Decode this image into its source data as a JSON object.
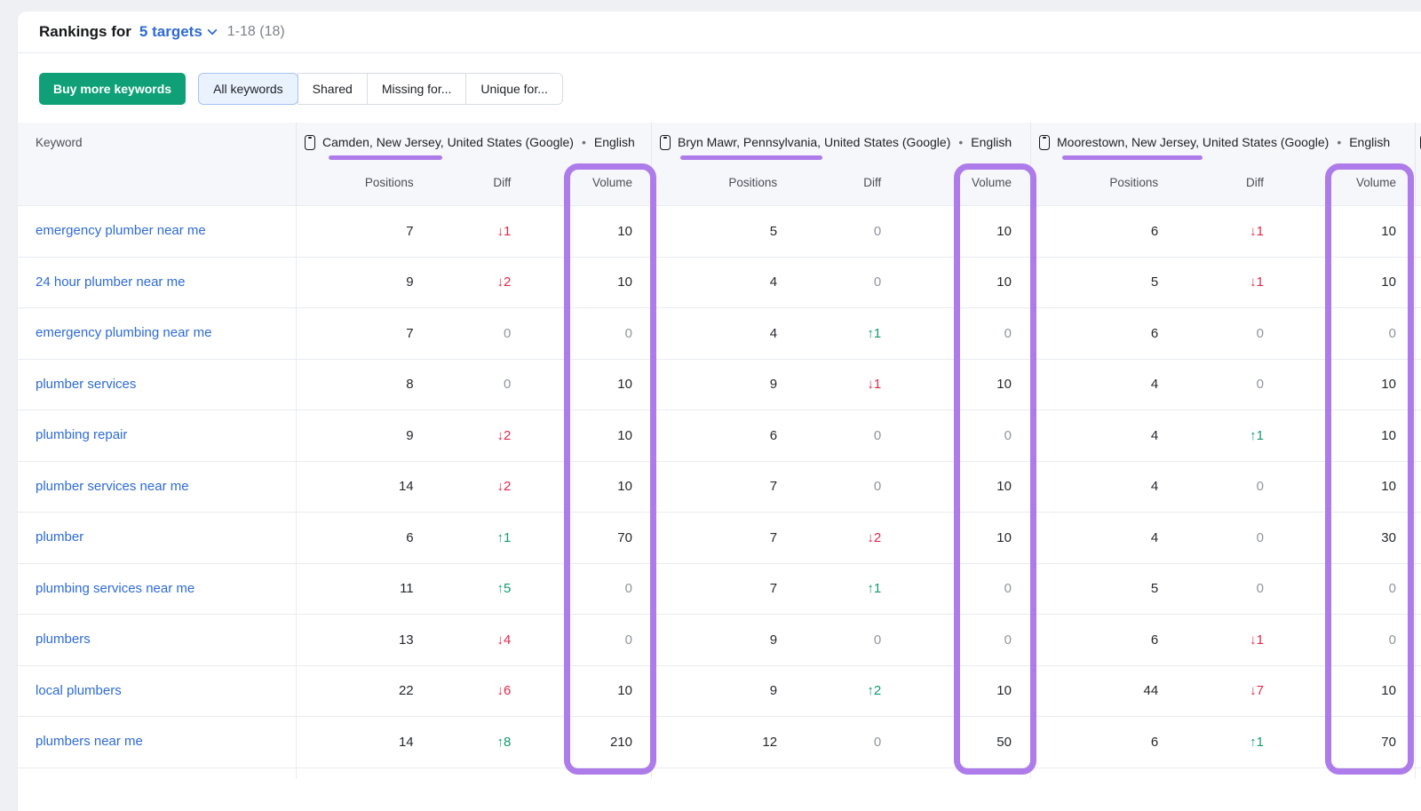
{
  "header": {
    "title_prefix": "Rankings for",
    "targets_label": "5 targets",
    "range_label": "1-18 (18)"
  },
  "toolbar": {
    "buy_button_label": "Buy more keywords",
    "tabs": [
      {
        "label": "All keywords",
        "active": true
      },
      {
        "label": "Shared",
        "active": false
      },
      {
        "label": "Missing for...",
        "active": false
      },
      {
        "label": "Unique for...",
        "active": false
      }
    ]
  },
  "icons": {
    "arrow_up": "↑",
    "arrow_down": "↓",
    "separator_dot": "•"
  },
  "colors": {
    "accent_purple": "#ae7cea",
    "positive_green": "#149a71",
    "negative_red": "#e0294b",
    "link_blue": "#2e6bd3",
    "buy_button_green": "#0fa078"
  },
  "table": {
    "keyword_header": "Keyword",
    "subheaders": [
      "Positions",
      "Diff",
      "Volume"
    ],
    "groups": [
      {
        "location": "Camden, New Jersey, United States (Google)",
        "language": "English"
      },
      {
        "location": "Bryn Mawr, Pennsylvania, United States (Google)",
        "language": "English"
      },
      {
        "location": "Moorestown, New Jersey, United States (Google)",
        "language": "English"
      }
    ],
    "rows": [
      {
        "keyword": "emergency plumber near me",
        "metrics": [
          [
            7,
            -1,
            10
          ],
          [
            5,
            0,
            10
          ],
          [
            6,
            -1,
            10
          ]
        ]
      },
      {
        "keyword": "24 hour plumber near me",
        "metrics": [
          [
            9,
            -2,
            10
          ],
          [
            4,
            0,
            10
          ],
          [
            5,
            -1,
            10
          ]
        ]
      },
      {
        "keyword": "emergency plumbing near me",
        "metrics": [
          [
            7,
            0,
            0
          ],
          [
            4,
            1,
            0
          ],
          [
            6,
            0,
            0
          ]
        ]
      },
      {
        "keyword": "plumber services",
        "metrics": [
          [
            8,
            0,
            10
          ],
          [
            9,
            -1,
            10
          ],
          [
            4,
            0,
            10
          ]
        ]
      },
      {
        "keyword": "plumbing repair",
        "metrics": [
          [
            9,
            -2,
            10
          ],
          [
            6,
            0,
            0
          ],
          [
            4,
            1,
            10
          ]
        ]
      },
      {
        "keyword": "plumber services near me",
        "metrics": [
          [
            14,
            -2,
            10
          ],
          [
            7,
            0,
            10
          ],
          [
            4,
            0,
            10
          ]
        ]
      },
      {
        "keyword": "plumber",
        "metrics": [
          [
            6,
            1,
            70
          ],
          [
            7,
            -2,
            10
          ],
          [
            4,
            0,
            30
          ]
        ]
      },
      {
        "keyword": "plumbing services near me",
        "metrics": [
          [
            11,
            5,
            0
          ],
          [
            7,
            1,
            0
          ],
          [
            5,
            0,
            0
          ]
        ]
      },
      {
        "keyword": "plumbers",
        "metrics": [
          [
            13,
            -4,
            0
          ],
          [
            9,
            0,
            0
          ],
          [
            6,
            -1,
            0
          ]
        ]
      },
      {
        "keyword": "local plumbers",
        "metrics": [
          [
            22,
            -6,
            10
          ],
          [
            9,
            2,
            10
          ],
          [
            44,
            -7,
            10
          ]
        ]
      },
      {
        "keyword": "plumbers near me",
        "metrics": [
          [
            14,
            8,
            210
          ],
          [
            12,
            0,
            50
          ],
          [
            6,
            1,
            70
          ]
        ]
      }
    ]
  }
}
